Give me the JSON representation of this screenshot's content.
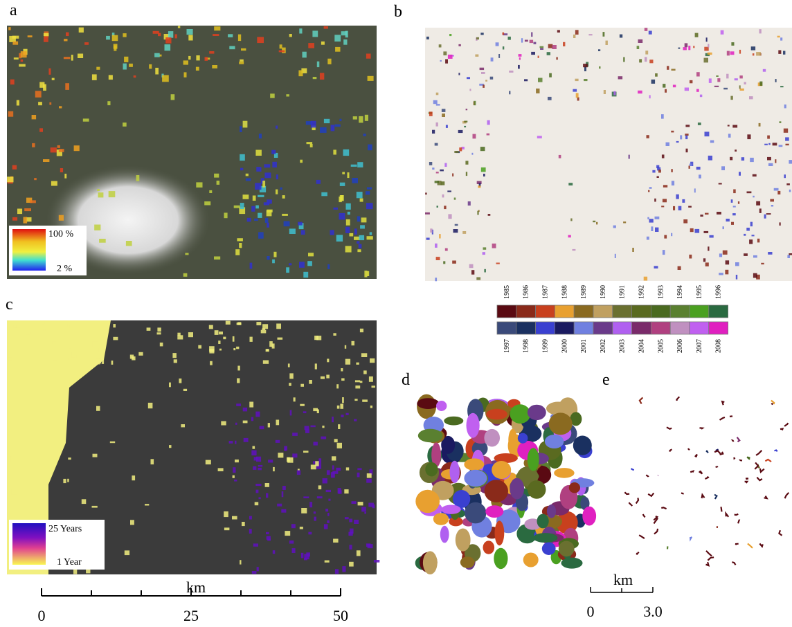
{
  "panels": {
    "a": "a",
    "b": "b",
    "c": "c",
    "d": "d",
    "e": "e"
  },
  "panel_a_legend": {
    "max": "100 %",
    "min": "2 %"
  },
  "year_legend": {
    "top": [
      {
        "year": "1985",
        "color": "#5a0a12"
      },
      {
        "year": "1986",
        "color": "#8a2a1a"
      },
      {
        "year": "1987",
        "color": "#c8401e"
      },
      {
        "year": "1988",
        "color": "#e8a030"
      },
      {
        "year": "1989",
        "color": "#8a6a20"
      },
      {
        "year": "1990",
        "color": "#c0a060"
      },
      {
        "year": "1991",
        "color": "#6a7030"
      },
      {
        "year": "1992",
        "color": "#5a6a20"
      },
      {
        "year": "1993",
        "color": "#4a6a20"
      },
      {
        "year": "1994",
        "color": "#5a8030"
      },
      {
        "year": "1995",
        "color": "#4aa020"
      },
      {
        "year": "1996",
        "color": "#2a6a40"
      }
    ],
    "bottom": [
      {
        "year": "1997",
        "color": "#3a4a7a"
      },
      {
        "year": "1998",
        "color": "#1a3060"
      },
      {
        "year": "1999",
        "color": "#3a40d0"
      },
      {
        "year": "2000",
        "color": "#1a1a60"
      },
      {
        "year": "2001",
        "color": "#7080e0"
      },
      {
        "year": "2002",
        "color": "#6a3a8a"
      },
      {
        "year": "2003",
        "color": "#b060f0"
      },
      {
        "year": "2004",
        "color": "#7a2a6a"
      },
      {
        "year": "2005",
        "color": "#b04080"
      },
      {
        "year": "2006",
        "color": "#c090c0"
      },
      {
        "year": "2007",
        "color": "#c060f0"
      },
      {
        "year": "2008",
        "color": "#e020c0"
      }
    ]
  },
  "panel_c_legend": {
    "max": "25 Years",
    "min": "1 Year"
  },
  "scale_bar_c": {
    "unit": "km",
    "labels": [
      "0",
      "25",
      "50"
    ]
  },
  "scale_bar_e": {
    "unit": "km",
    "labels": [
      "0",
      "3.0"
    ]
  }
}
